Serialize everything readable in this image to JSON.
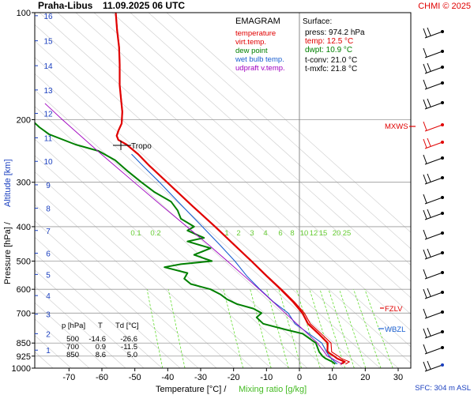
{
  "header": {
    "station": "Praha-Libus",
    "datetime": "11.09.2025 06 UTC",
    "credit": "CHMI © 2025"
  },
  "legend": {
    "title": "EMAGRAM",
    "items": [
      {
        "label": "temperature",
        "color": "#e00000"
      },
      {
        "label": "virt.temp.",
        "color": "#e00000"
      },
      {
        "label": "dew point",
        "color": "#008000"
      },
      {
        "label": "wet bulb temp.",
        "color": "#1a5fd0"
      },
      {
        "label": "udpraft v.temp.",
        "color": "#a000c0"
      }
    ]
  },
  "surface_box": {
    "title": "Surface:",
    "rows": [
      {
        "text": "press: 974.2 hPa",
        "color": "#000000"
      },
      {
        "text": "temp: 12.5 °C",
        "color": "#e00000"
      },
      {
        "text": "dwpt: 10.9 °C",
        "color": "#008000"
      }
    ],
    "tconv": "t-conv: 21.0 °C",
    "tmxfc": "t-mxfc: 21.8 °C"
  },
  "table": {
    "headers": [
      "p [hPa]",
      "T",
      "Td [°C]"
    ],
    "rows": [
      [
        "500",
        "-14.6",
        "-26.6"
      ],
      [
        "700",
        "0.9",
        "-11.5"
      ],
      [
        "850",
        "8.6",
        "5.0"
      ]
    ]
  },
  "axis_labels": {
    "y": "Pressure [hPa]  /  Altitude [km]",
    "x_main": "Temperature [°C]  /",
    "x_mix": "Mixing ratio [g/kg]"
  },
  "markers": {
    "tropo": "Tropo",
    "mxws": "MXWS",
    "fzlv": "FZLV",
    "wbzl": "WBZL",
    "sfc": "SFC: 304 m ASL"
  },
  "colors": {
    "temperature": "#e00000",
    "dewpoint": "#008000",
    "wetbulb": "#1a5fd0",
    "parcel": "#a000c0",
    "mixing": "#66dd33",
    "altitude": "#1a3fbf",
    "axis": "#000000",
    "isotherm": "#aaaaaa"
  },
  "chart_data": {
    "type": "line",
    "title": "Praha-Libus 11.09.2025 06 UTC",
    "y_scale": "log",
    "y_range": [
      1000,
      100
    ],
    "x_range": [
      -80,
      35
    ],
    "pressure_ticks": [
      100,
      200,
      300,
      400,
      500,
      600,
      700,
      850,
      925,
      1000
    ],
    "temperature_ticks": [
      -70,
      -60,
      -50,
      -40,
      -30,
      -20,
      -10,
      0,
      10,
      20,
      30
    ],
    "altitude_ticks": [
      1,
      2,
      3,
      4,
      5,
      6,
      7,
      8,
      9,
      10,
      11,
      12,
      13,
      14,
      15,
      16
    ],
    "altitude_pressures": [
      890,
      800,
      705,
      625,
      545,
      475,
      410,
      355,
      305,
      262,
      225,
      192,
      165,
      141,
      120,
      102
    ],
    "mixing_ratio_labels": [
      "0.1",
      "0.2",
      "1",
      "2",
      "3",
      "4",
      "6",
      "8",
      "10",
      "12",
      "15",
      "20",
      "25"
    ],
    "mixing_ratio_values": [
      0.1,
      0.2,
      1,
      2,
      3,
      4,
      6,
      8,
      10,
      12,
      15,
      20,
      25
    ],
    "series": [
      {
        "name": "temperature",
        "points": [
          [
            974,
            12.5
          ],
          [
            960,
            13.8
          ],
          [
            940,
            11.5
          ],
          [
            925,
            10.5
          ],
          [
            900,
            8.5
          ],
          [
            850,
            8.6
          ],
          [
            800,
            5.8
          ],
          [
            750,
            2.6
          ],
          [
            700,
            0.9
          ],
          [
            650,
            -2.0
          ],
          [
            600,
            -5.7
          ],
          [
            550,
            -10.0
          ],
          [
            500,
            -14.6
          ],
          [
            450,
            -19.8
          ],
          [
            400,
            -25.6
          ],
          [
            350,
            -32.5
          ],
          [
            300,
            -40.2
          ],
          [
            270,
            -45.5
          ],
          [
            250,
            -49.0
          ],
          [
            235,
            -52.5
          ],
          [
            228,
            -55.0
          ],
          [
            222,
            -55.5
          ],
          [
            215,
            -55.0
          ],
          [
            205,
            -54.0
          ],
          [
            190,
            -53.8
          ],
          [
            175,
            -54.2
          ],
          [
            160,
            -54.6
          ],
          [
            140,
            -54.6
          ],
          [
            125,
            -54.8
          ],
          [
            112,
            -55.4
          ],
          [
            100,
            -55.8
          ]
        ]
      },
      {
        "name": "virt.temp.",
        "points": [
          [
            974,
            14.0
          ],
          [
            960,
            15.2
          ],
          [
            940,
            12.8
          ],
          [
            925,
            11.8
          ],
          [
            900,
            9.8
          ],
          [
            850,
            9.6
          ],
          [
            800,
            6.6
          ],
          [
            750,
            3.3
          ],
          [
            700,
            1.5
          ],
          [
            650,
            -1.6
          ],
          [
            600,
            -5.4
          ],
          [
            550,
            -9.8
          ],
          [
            500,
            -14.4
          ],
          [
            450,
            -19.7
          ],
          [
            400,
            -25.5
          ],
          [
            350,
            -32.4
          ],
          [
            300,
            -40.1
          ],
          [
            270,
            -45.4
          ],
          [
            250,
            -48.9
          ],
          [
            235,
            -52.4
          ],
          [
            228,
            -54.9
          ],
          [
            222,
            -55.4
          ],
          [
            215,
            -54.9
          ],
          [
            205,
            -53.9
          ],
          [
            190,
            -53.7
          ],
          [
            175,
            -54.1
          ],
          [
            160,
            -54.5
          ],
          [
            140,
            -54.5
          ],
          [
            125,
            -54.7
          ],
          [
            112,
            -55.3
          ],
          [
            100,
            -55.7
          ]
        ]
      },
      {
        "name": "dew point",
        "points": [
          [
            974,
            10.9
          ],
          [
            960,
            10.0
          ],
          [
            940,
            8.0
          ],
          [
            925,
            7.0
          ],
          [
            900,
            6.0
          ],
          [
            850,
            5.0
          ],
          [
            800,
            1.0
          ],
          [
            780,
            -4.0
          ],
          [
            750,
            -11.0
          ],
          [
            720,
            -13.0
          ],
          [
            700,
            -11.5
          ],
          [
            680,
            -14.0
          ],
          [
            660,
            -19.0
          ],
          [
            640,
            -22.0
          ],
          [
            620,
            -24.0
          ],
          [
            600,
            -27.0
          ],
          [
            580,
            -33.0
          ],
          [
            560,
            -35.0
          ],
          [
            540,
            -34.0
          ],
          [
            520,
            -41.0
          ],
          [
            510,
            -36.0
          ],
          [
            500,
            -26.6
          ],
          [
            480,
            -32.0
          ],
          [
            460,
            -27.0
          ],
          [
            440,
            -34.0
          ],
          [
            430,
            -29.0
          ],
          [
            410,
            -34.0
          ],
          [
            400,
            -32.0
          ],
          [
            380,
            -36.0
          ],
          [
            360,
            -37.0
          ],
          [
            340,
            -39.0
          ],
          [
            320,
            -44.0
          ],
          [
            300,
            -48.0
          ],
          [
            280,
            -52.0
          ],
          [
            260,
            -56.0
          ],
          [
            245,
            -61.0
          ],
          [
            235,
            -68.0
          ],
          [
            220,
            -76.0
          ],
          [
            210,
            -79.0
          ],
          [
            198,
            -82.0
          ],
          [
            185,
            -84.0
          ],
          [
            170,
            -85.0
          ]
        ]
      },
      {
        "name": "wet bulb temp.",
        "points": [
          [
            974,
            11.5
          ],
          [
            925,
            9.0
          ],
          [
            850,
            6.8
          ],
          [
            800,
            2.9
          ],
          [
            750,
            -1.3
          ],
          [
            700,
            -3.4
          ],
          [
            650,
            -8.0
          ],
          [
            600,
            -12.0
          ],
          [
            550,
            -16.0
          ],
          [
            500,
            -19.6
          ],
          [
            450,
            -24.2
          ],
          [
            400,
            -29.5
          ],
          [
            350,
            -35.6
          ],
          [
            300,
            -42.5
          ],
          [
            270,
            -47.5
          ],
          [
            250,
            -51.0
          ]
        ]
      },
      {
        "name": "udpraft v.temp.",
        "points": [
          [
            974,
            13.0
          ],
          [
            925,
            8.5
          ],
          [
            850,
            5.5
          ],
          [
            800,
            2.5
          ],
          [
            750,
            -0.8
          ],
          [
            700,
            -4.3
          ],
          [
            650,
            -8.1
          ],
          [
            600,
            -12.2
          ],
          [
            550,
            -16.8
          ],
          [
            500,
            -21.9
          ],
          [
            450,
            -27.6
          ],
          [
            400,
            -34.2
          ],
          [
            350,
            -41.7
          ],
          [
            300,
            -50.2
          ],
          [
            250,
            -60.2
          ],
          [
            200,
            -72.0
          ],
          [
            190,
            -74.6
          ],
          [
            180,
            -77.3
          ]
        ]
      }
    ]
  }
}
